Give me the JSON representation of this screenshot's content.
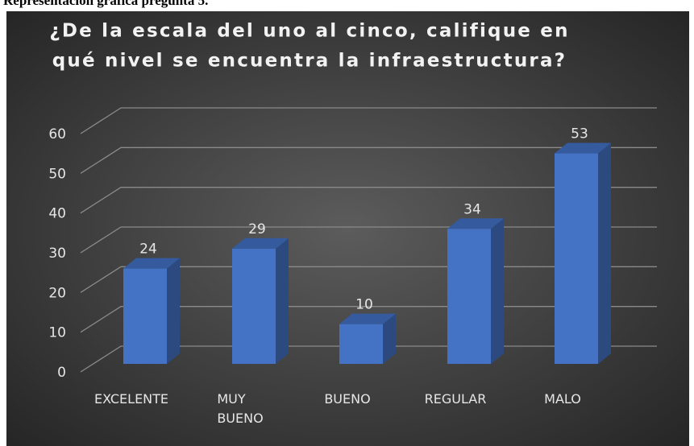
{
  "caption": "Representación gráfica pregunta 5.",
  "chart_data": {
    "type": "bar3d",
    "title": [
      "¿De la escala del uno al cinco, califique en",
      "qué nivel se encuentra la infraestructura?"
    ],
    "categories": [
      "EXCELENTE",
      "MUY BUENO",
      "BUENO",
      "REGULAR",
      "MALO"
    ],
    "values": [
      24,
      29,
      10,
      34,
      53
    ],
    "color": "#4472c4",
    "ylim": [
      0,
      60
    ],
    "yticks": [
      0,
      10,
      20,
      30,
      40,
      50,
      60
    ],
    "grid": true
  }
}
